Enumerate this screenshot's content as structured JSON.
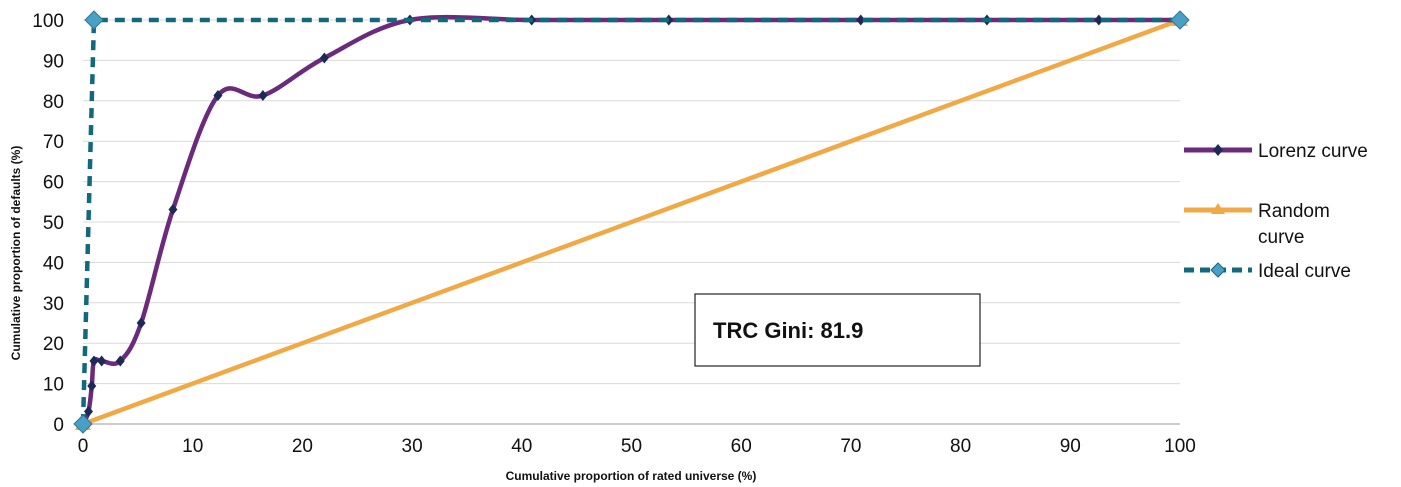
{
  "chart_data": {
    "type": "line",
    "title": "",
    "xlabel": "Cumulative proportion of rated universe (%)",
    "ylabel": "Cumulative proportion of defaults (%)",
    "xlim": [
      0,
      100
    ],
    "ylim": [
      0,
      100
    ],
    "xticks": [
      "0",
      "10",
      "20",
      "30",
      "40",
      "50",
      "60",
      "70",
      "80",
      "90",
      "100"
    ],
    "yticks": [
      "0",
      "10",
      "20",
      "30",
      "40",
      "50",
      "60",
      "70",
      "80",
      "90",
      "100"
    ],
    "grid": "horizontal",
    "legend_position": "right",
    "series": [
      {
        "name": "Lorenz curve",
        "color": "#6b2a7b",
        "marker": "diamond-icon",
        "style": "solid-smooth",
        "x": [
          0,
          0.5,
          0.8,
          1.0,
          1.7,
          3.4,
          5.3,
          8.2,
          12.3,
          16.4,
          22.0,
          29.8,
          40.9,
          53.4,
          70.9,
          82.4,
          92.6,
          100
        ],
        "y": [
          0,
          3.1,
          9.4,
          15.6,
          15.6,
          15.6,
          25.0,
          53.1,
          81.3,
          81.3,
          90.6,
          100,
          100,
          100,
          100,
          100,
          100,
          100
        ]
      },
      {
        "name": "Random curve",
        "color": "#f0a945",
        "marker": "triangle-icon",
        "style": "solid",
        "x": [
          0,
          100
        ],
        "y": [
          0,
          100
        ]
      },
      {
        "name": "Ideal curve",
        "color": "#12697e",
        "marker": "diamond-icon",
        "style": "dashed",
        "x": [
          0,
          1.0,
          100
        ],
        "y": [
          0,
          100,
          100
        ]
      }
    ],
    "legend": [
      "Lorenz curve",
      "Random",
      "curve",
      "Ideal curve"
    ],
    "annotation": "TRC Gini: 81.9"
  }
}
